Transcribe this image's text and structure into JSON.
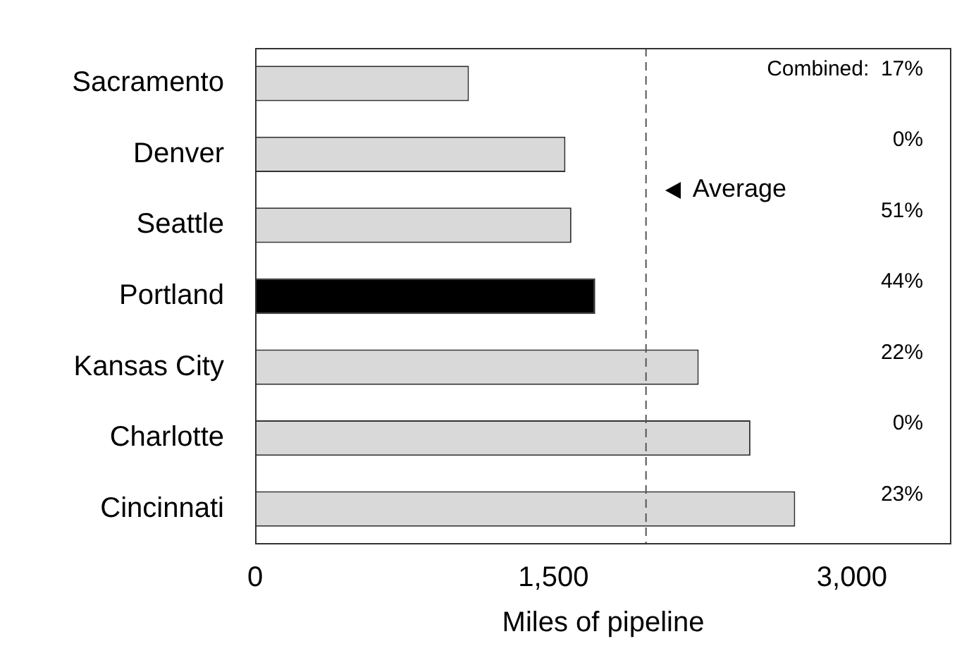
{
  "chart_data": {
    "type": "bar",
    "orientation": "horizontal",
    "xlabel": "Miles of pipeline",
    "categories": [
      "Sacramento",
      "Denver",
      "Seattle",
      "Portland",
      "Kansas City",
      "Charlotte",
      "Cincinnati"
    ],
    "values": [
      1075,
      1560,
      1590,
      1710,
      2230,
      2490,
      2715
    ],
    "colors": [
      "#d9d9d9",
      "#d9d9d9",
      "#d9d9d9",
      "#000000",
      "#d9d9d9",
      "#d9d9d9",
      "#d9d9d9"
    ],
    "xlim": [
      0,
      3500
    ],
    "xticks": [
      0,
      {
        "value": 1500,
        "label": "1,500"
      },
      {
        "value": 3000,
        "label": "3,000"
      }
    ],
    "ref_lines": [
      {
        "axis": "x",
        "value": 1965,
        "label": "Average",
        "color": "#555555",
        "line_style": "dashed"
      }
    ],
    "annotations": [
      "Combined:  17%",
      "0%",
      "51%",
      "44%",
      "22%",
      "0%",
      "23%"
    ],
    "grid": false,
    "legend": false
  }
}
